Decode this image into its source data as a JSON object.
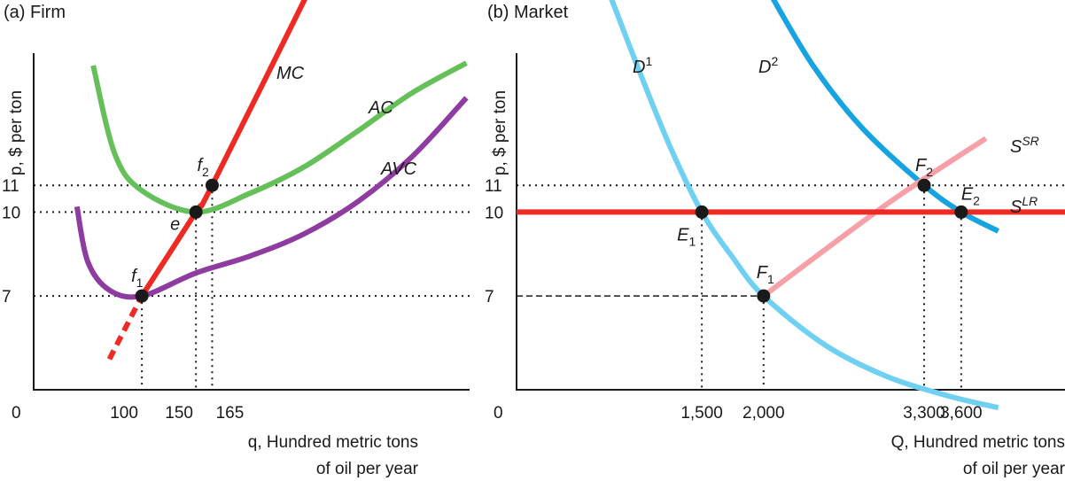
{
  "chart_data": [
    {
      "title": "(a) Firm",
      "type": "line",
      "xlabel_line1": "q, Hundred metric tons",
      "xlabel_line2": "of oil per year",
      "ylabel": "p, $ per ton",
      "origin_label": "0",
      "x_ticks": [
        100,
        150,
        165
      ],
      "x_tick_labels": [
        "100",
        "150",
        "165"
      ],
      "y_ticks": [
        7,
        10,
        11
      ],
      "y_tick_labels": [
        "7",
        "10",
        "11"
      ],
      "series": [
        {
          "name": "MC",
          "color": "#ee2a24",
          "solid_from_x": 100,
          "points": [
            [
              70,
              4.9
            ],
            [
              100,
              7
            ],
            [
              150,
              10
            ],
            [
              165,
              11
            ],
            [
              260,
              19.3
            ]
          ]
        },
        {
          "name": "AC",
          "color": "#66c05a",
          "points": [
            [
              55,
              15.7
            ],
            [
              75,
              12.2
            ],
            [
              100,
              10.8
            ],
            [
              150,
              10
            ],
            [
              200,
              10.7
            ],
            [
              250,
              11.7
            ],
            [
              300,
              13.1
            ],
            [
              350,
              14.6
            ],
            [
              400,
              15.8
            ]
          ]
        },
        {
          "name": "AVC",
          "color": "#8e3c9f",
          "points": [
            [
              40,
              10.2
            ],
            [
              50,
              8.2
            ],
            [
              70,
              7.2
            ],
            [
              100,
              7
            ],
            [
              150,
              7.8
            ],
            [
              200,
              8.4
            ],
            [
              250,
              9.2
            ],
            [
              300,
              10.4
            ],
            [
              350,
              12.1
            ],
            [
              400,
              14.4
            ]
          ]
        }
      ],
      "points": [
        {
          "label": "f",
          "sub": "1",
          "x": 100,
          "y": 7
        },
        {
          "label": "e",
          "sub": "",
          "x": 150,
          "y": 10
        },
        {
          "label": "f",
          "sub": "2",
          "x": 165,
          "y": 11
        }
      ]
    },
    {
      "title": "(b) Market",
      "type": "line",
      "xlabel_line1": "Q, Hundred metric tons",
      "xlabel_line2": "of oil per year",
      "ylabel": "p, $ per ton",
      "origin_label": "0",
      "x_ticks": [
        1500,
        2000,
        3300,
        3600
      ],
      "x_tick_labels": [
        "1,500",
        "2,000",
        "3,300",
        "3,600"
      ],
      "y_ticks": [
        7,
        10,
        11
      ],
      "y_tick_labels": [
        "7",
        "10",
        "11"
      ],
      "series": [
        {
          "name": "D",
          "sup": "1",
          "color": "#6fd0f2",
          "points": [
            [
              750,
              18.7
            ],
            [
              1000,
              15.4
            ],
            [
              1250,
              12.4
            ],
            [
              1500,
              10
            ],
            [
              1750,
              8.35
            ],
            [
              2000,
              7
            ],
            [
              2500,
              5.35
            ],
            [
              3000,
              4.35
            ],
            [
              3500,
              3.75
            ],
            [
              3900,
              3.4
            ]
          ]
        },
        {
          "name": "D",
          "sup": "2",
          "color": "#16a3e1",
          "points": [
            [
              2050,
              18.7
            ],
            [
              2400,
              15.7
            ],
            [
              2800,
              13.2
            ],
            [
              3300,
              11
            ],
            [
              3600,
              10
            ],
            [
              3900,
              9.3
            ]
          ]
        },
        {
          "name": "S",
          "sup": "SR",
          "color": "#f7a0a8",
          "points": [
            [
              2000,
              7
            ],
            [
              3000,
              10.3
            ],
            [
              3800,
              12.8
            ]
          ]
        },
        {
          "name": "S",
          "sup": "LR",
          "color": "#ee2a24",
          "points": [
            [
              0,
              10
            ],
            [
              3900,
              10
            ]
          ]
        }
      ],
      "points": [
        {
          "label": "E",
          "sub": "1",
          "x": 1500,
          "y": 10
        },
        {
          "label": "F",
          "sub": "1",
          "x": 2000,
          "y": 7
        },
        {
          "label": "F",
          "sub": "2",
          "x": 3300,
          "y": 11
        },
        {
          "label": "E",
          "sub": "2",
          "x": 3600,
          "y": 10
        }
      ]
    }
  ]
}
